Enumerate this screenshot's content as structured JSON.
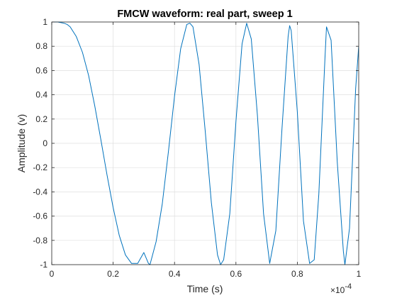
{
  "chart_data": {
    "type": "line",
    "title": "FMCW waveform: real part, sweep 1",
    "xlabel": "Time (s)",
    "ylabel": "Amplitude (v)",
    "x_exponent_label": "×10",
    "x_exponent_power": "-4",
    "xlim": [
      0,
      1
    ],
    "ylim": [
      -1,
      1
    ],
    "x_unit_scale": 0.0001,
    "grid": true,
    "legend": "none",
    "x_ticks": [
      0,
      0.2,
      0.4,
      0.6,
      0.8,
      1
    ],
    "x_tick_labels": [
      "0",
      "0.2",
      "0.4",
      "0.6",
      "0.8",
      "1"
    ],
    "y_ticks": [
      -1,
      -0.8,
      -0.6,
      -0.4,
      -0.2,
      0,
      0.2,
      0.4,
      0.6,
      0.8,
      1
    ],
    "y_tick_labels": [
      "-1",
      "-0.8",
      "-0.6",
      "-0.4",
      "-0.2",
      "0",
      "0.2",
      "0.4",
      "0.6",
      "0.8",
      "1"
    ],
    "series": [
      {
        "color": "#0072BD",
        "x": [
          0,
          0.02,
          0.04,
          0.05,
          0.06,
          0.08,
          0.1,
          0.12,
          0.14,
          0.16,
          0.18,
          0.2,
          0.22,
          0.24,
          0.26,
          0.28,
          0.3,
          0.315,
          0.32,
          0.34,
          0.36,
          0.38,
          0.4,
          0.42,
          0.44,
          0.45,
          0.46,
          0.48,
          0.5,
          0.52,
          0.54,
          0.55,
          0.56,
          0.58,
          0.6,
          0.62,
          0.635,
          0.65,
          0.67,
          0.69,
          0.71,
          0.73,
          0.75,
          0.77,
          0.775,
          0.78,
          0.8,
          0.82,
          0.84,
          0.855,
          0.87,
          0.89,
          0.895,
          0.91,
          0.93,
          0.95,
          0.955,
          0.97,
          0.99,
          1.0
        ],
        "y": [
          1.0,
          1.0,
          0.99,
          0.98,
          0.96,
          0.88,
          0.75,
          0.56,
          0.31,
          0.03,
          -0.26,
          -0.53,
          -0.76,
          -0.92,
          -0.99,
          -0.99,
          -0.9,
          -0.99,
          -1.0,
          -0.81,
          -0.5,
          -0.07,
          0.39,
          0.78,
          0.98,
          0.99,
          0.96,
          0.65,
          0.1,
          -0.49,
          -0.92,
          -1.0,
          -0.96,
          -0.58,
          0.18,
          0.82,
          0.99,
          0.86,
          0.23,
          -0.58,
          -0.99,
          -0.72,
          0.12,
          0.88,
          0.97,
          0.93,
          0.26,
          -0.64,
          -0.99,
          -0.96,
          -0.42,
          0.7,
          0.96,
          0.85,
          -0.15,
          -0.89,
          -1.0,
          -0.7,
          0.45,
          0.8
        ]
      }
    ]
  }
}
